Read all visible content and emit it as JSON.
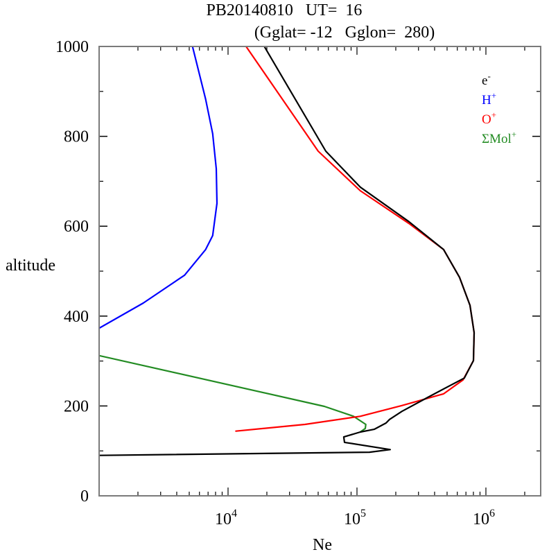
{
  "chart_data": {
    "type": "line",
    "title_line1": "PB20140810   UT=  16",
    "title_line2": "(Gglat= -12   Gglon=  280)",
    "xlabel": "Ne",
    "ylabel": "altitude",
    "xscale": "log",
    "xlim": [
      1000,
      2660000
    ],
    "ylim": [
      0,
      1000
    ],
    "grid": false,
    "legend_position": "top-right",
    "yticks": [
      {
        "value": 0,
        "label": "0"
      },
      {
        "value": 200,
        "label": "200"
      },
      {
        "value": 400,
        "label": "400"
      },
      {
        "value": 600,
        "label": "600"
      },
      {
        "value": 800,
        "label": "800"
      },
      {
        "value": 1000,
        "label": "1000"
      }
    ],
    "yminor_ticks": [
      100,
      300,
      500,
      700,
      900
    ],
    "xticks": [
      {
        "value": 10000,
        "base": "10",
        "exp": "4"
      },
      {
        "value": 100000,
        "base": "10",
        "exp": "5"
      },
      {
        "value": 1000000,
        "base": "10",
        "exp": "6"
      }
    ],
    "series": [
      {
        "name": "e-",
        "legend_base": "e",
        "legend_sup": "-",
        "color": "#000000",
        "points": [
          [
            19100,
            1000
          ],
          [
            57300,
            767
          ],
          [
            106000,
            687
          ],
          [
            253000,
            610
          ],
          [
            470000,
            548
          ],
          [
            625000,
            486
          ],
          [
            752000,
            424
          ],
          [
            810000,
            363
          ],
          [
            800000,
            301
          ],
          [
            680000,
            262
          ],
          [
            353000,
            219
          ],
          [
            223000,
            188
          ],
          [
            179000,
            170
          ],
          [
            168000,
            162
          ],
          [
            136000,
            148
          ],
          [
            106000,
            142
          ],
          [
            79000,
            131
          ],
          [
            80000,
            119
          ],
          [
            181000,
            103
          ],
          [
            125000,
            97
          ],
          [
            1000,
            90
          ]
        ]
      },
      {
        "name": "H+",
        "legend_base": "H",
        "legend_sup": "+",
        "color": "#0000ff",
        "points": [
          [
            5300,
            1000
          ],
          [
            6700,
            883
          ],
          [
            7600,
            806
          ],
          [
            8100,
            728
          ],
          [
            8200,
            651
          ],
          [
            7600,
            579
          ],
          [
            6700,
            548
          ],
          [
            4600,
            491
          ],
          [
            2200,
            429
          ],
          [
            1000,
            373
          ]
        ]
      },
      {
        "name": "O+",
        "legend_base": "O",
        "legend_sup": "+",
        "color": "#ff0000",
        "points": [
          [
            13800,
            1000
          ],
          [
            50000,
            767
          ],
          [
            106000,
            679
          ],
          [
            253000,
            606
          ],
          [
            470000,
            548
          ],
          [
            625000,
            486
          ],
          [
            752000,
            424
          ],
          [
            810000,
            363
          ],
          [
            800000,
            301
          ],
          [
            665000,
            258
          ],
          [
            470000,
            227
          ],
          [
            223000,
            201
          ],
          [
            106000,
            177
          ],
          [
            39500,
            159
          ],
          [
            11500,
            144
          ]
        ]
      },
      {
        "name": "ΣMol+",
        "legend_base": "ΣMol",
        "legend_sup": "+",
        "color": "#228b22",
        "points": [
          [
            1000,
            312
          ],
          [
            55800,
            199
          ],
          [
            94000,
            177
          ],
          [
            117000,
            159
          ],
          [
            116000,
            150
          ],
          [
            106000,
            142
          ]
        ]
      }
    ]
  }
}
